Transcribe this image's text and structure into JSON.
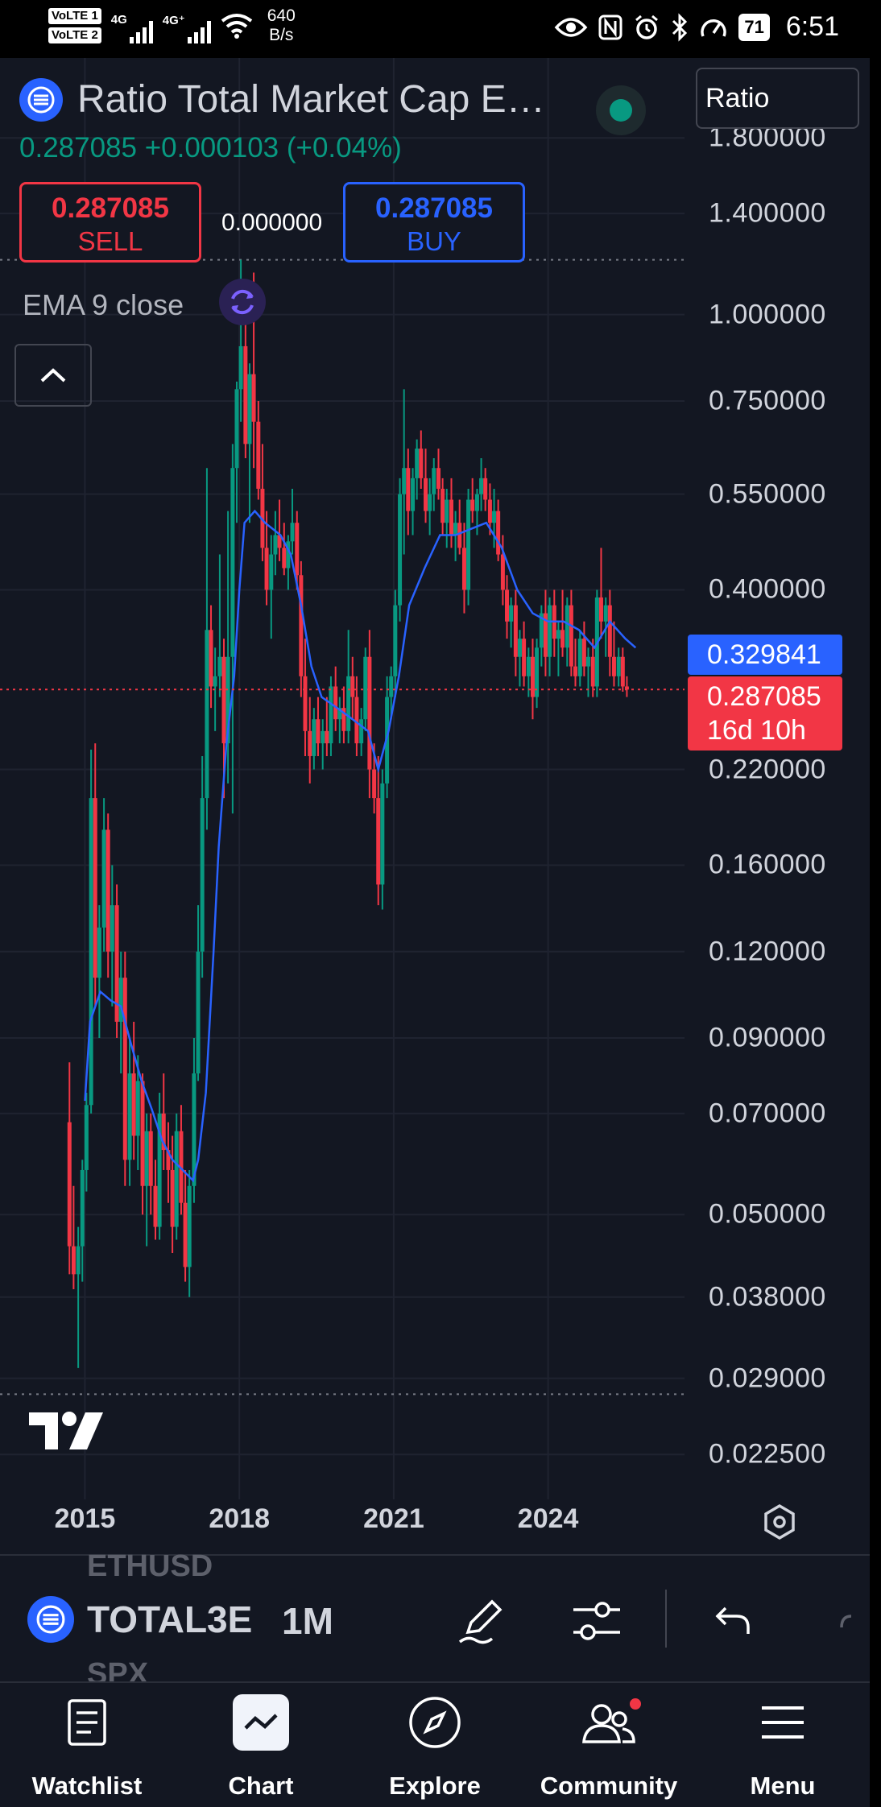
{
  "status": {
    "volte1": "VoLTE 1",
    "volte2": "VoLTE 2",
    "net1": "4G",
    "net2": "4G⁺",
    "speed_value": "640",
    "speed_unit": "B/s",
    "battery": "71",
    "time": "6:51"
  },
  "header": {
    "title": "Ratio Total Market Cap E…",
    "scale_mode": "Ratio",
    "price_change": "0.287085  +0.000103 (+0.04%)",
    "sell_price": "0.287085",
    "sell_label": "SELL",
    "spread": "0.000000",
    "buy_price": "0.287085",
    "buy_label": "BUY",
    "indicator": "EMA 9 close"
  },
  "colors": {
    "background": "#131722",
    "up": "#089981",
    "down": "#f23645",
    "ema": "#2962ff",
    "text": "#d1d4dc"
  },
  "price_axis": {
    "ticks": [
      "1.800000",
      "1.400000",
      "1.000000",
      "0.750000",
      "0.550000",
      "0.400000",
      "0.220000",
      "0.160000",
      "0.120000",
      "0.090000",
      "0.070000",
      "0.050000",
      "0.038000",
      "0.029000",
      "0.022500"
    ],
    "ema_tag": "0.329841",
    "last_price_tag": "0.287085",
    "countdown": "16d 10h"
  },
  "chart_data": {
    "type": "candlestick",
    "scale": "log",
    "interval": "1M",
    "ylim": [
      0.021,
      2.0
    ],
    "x_ticks": [
      "2015",
      "2018",
      "2021",
      "2024"
    ],
    "x_tick_years": [
      2015,
      2018,
      2021,
      2024
    ],
    "x_range": [
      2013.35,
      2026.65
    ],
    "series": [
      {
        "name": "EMA 9 close",
        "points": [
          [
            2015.0,
            0.073
          ],
          [
            2015.1,
            0.095
          ],
          [
            2015.3,
            0.105
          ],
          [
            2015.5,
            0.102
          ],
          [
            2015.7,
            0.1
          ],
          [
            2015.9,
            0.088
          ],
          [
            2016.1,
            0.078
          ],
          [
            2016.3,
            0.071
          ],
          [
            2016.5,
            0.064
          ],
          [
            2016.7,
            0.06
          ],
          [
            2016.9,
            0.058
          ],
          [
            2017.1,
            0.056
          ],
          [
            2017.2,
            0.06
          ],
          [
            2017.35,
            0.075
          ],
          [
            2017.5,
            0.12
          ],
          [
            2017.6,
            0.17
          ],
          [
            2017.75,
            0.24
          ],
          [
            2017.9,
            0.3
          ],
          [
            2018.0,
            0.4
          ],
          [
            2018.1,
            0.5
          ],
          [
            2018.3,
            0.52
          ],
          [
            2018.5,
            0.5
          ],
          [
            2018.8,
            0.48
          ],
          [
            2019.0,
            0.45
          ],
          [
            2019.2,
            0.38
          ],
          [
            2019.4,
            0.31
          ],
          [
            2019.6,
            0.28
          ],
          [
            2019.9,
            0.27
          ],
          [
            2020.2,
            0.26
          ],
          [
            2020.5,
            0.25
          ],
          [
            2020.7,
            0.22
          ],
          [
            2020.9,
            0.25
          ],
          [
            2021.1,
            0.3
          ],
          [
            2021.3,
            0.38
          ],
          [
            2021.6,
            0.43
          ],
          [
            2021.9,
            0.48
          ],
          [
            2022.2,
            0.48
          ],
          [
            2022.5,
            0.49
          ],
          [
            2022.8,
            0.5
          ],
          [
            2023.1,
            0.46
          ],
          [
            2023.4,
            0.4
          ],
          [
            2023.7,
            0.37
          ],
          [
            2024.0,
            0.36
          ],
          [
            2024.3,
            0.36
          ],
          [
            2024.6,
            0.35
          ],
          [
            2024.9,
            0.33
          ],
          [
            2025.2,
            0.36
          ],
          [
            2025.5,
            0.34
          ],
          [
            2025.7,
            0.33
          ]
        ]
      }
    ],
    "candles": [
      [
        2014.7,
        0.068,
        0.083,
        0.041,
        0.045
      ],
      [
        2014.78,
        0.045,
        0.055,
        0.039,
        0.041
      ],
      [
        2014.87,
        0.041,
        0.048,
        0.03,
        0.045
      ],
      [
        2014.95,
        0.045,
        0.06,
        0.04,
        0.058
      ],
      [
        2015.03,
        0.058,
        0.075,
        0.054,
        0.072
      ],
      [
        2015.12,
        0.072,
        0.235,
        0.07,
        0.2
      ],
      [
        2015.2,
        0.2,
        0.24,
        0.1,
        0.11
      ],
      [
        2015.28,
        0.11,
        0.14,
        0.09,
        0.13
      ],
      [
        2015.37,
        0.13,
        0.2,
        0.12,
        0.18
      ],
      [
        2015.45,
        0.18,
        0.19,
        0.11,
        0.12
      ],
      [
        2015.53,
        0.12,
        0.16,
        0.1,
        0.14
      ],
      [
        2015.62,
        0.14,
        0.15,
        0.09,
        0.095
      ],
      [
        2015.7,
        0.095,
        0.12,
        0.08,
        0.11
      ],
      [
        2015.78,
        0.11,
        0.12,
        0.055,
        0.06
      ],
      [
        2015.87,
        0.06,
        0.09,
        0.055,
        0.08
      ],
      [
        2015.95,
        0.08,
        0.095,
        0.06,
        0.065
      ],
      [
        2016.03,
        0.065,
        0.085,
        0.058,
        0.078
      ],
      [
        2016.12,
        0.078,
        0.08,
        0.05,
        0.055
      ],
      [
        2016.2,
        0.055,
        0.07,
        0.045,
        0.066
      ],
      [
        2016.28,
        0.066,
        0.07,
        0.05,
        0.055
      ],
      [
        2016.37,
        0.055,
        0.06,
        0.046,
        0.048
      ],
      [
        2016.45,
        0.048,
        0.075,
        0.046,
        0.07
      ],
      [
        2016.53,
        0.07,
        0.08,
        0.058,
        0.062
      ],
      [
        2016.62,
        0.062,
        0.068,
        0.052,
        0.058
      ],
      [
        2016.7,
        0.058,
        0.065,
        0.044,
        0.048
      ],
      [
        2016.78,
        0.048,
        0.07,
        0.046,
        0.066
      ],
      [
        2016.87,
        0.066,
        0.072,
        0.05,
        0.052
      ],
      [
        2016.95,
        0.052,
        0.058,
        0.04,
        0.042
      ],
      [
        2017.03,
        0.042,
        0.058,
        0.038,
        0.055
      ],
      [
        2017.12,
        0.055,
        0.09,
        0.052,
        0.08
      ],
      [
        2017.2,
        0.08,
        0.14,
        0.078,
        0.12
      ],
      [
        2017.28,
        0.12,
        0.23,
        0.11,
        0.2
      ],
      [
        2017.37,
        0.2,
        0.6,
        0.18,
        0.35
      ],
      [
        2017.45,
        0.35,
        0.38,
        0.27,
        0.29
      ],
      [
        2017.53,
        0.29,
        0.33,
        0.25,
        0.3
      ],
      [
        2017.62,
        0.3,
        0.45,
        0.28,
        0.32
      ],
      [
        2017.7,
        0.32,
        0.34,
        0.2,
        0.24
      ],
      [
        2017.78,
        0.24,
        0.52,
        0.21,
        0.32
      ],
      [
        2017.87,
        0.32,
        0.65,
        0.19,
        0.6
      ],
      [
        2017.95,
        0.6,
        0.8,
        0.5,
        0.78
      ],
      [
        2018.03,
        0.78,
        1.2,
        0.7,
        0.9
      ],
      [
        2018.12,
        0.9,
        1.0,
        0.62,
        0.65
      ],
      [
        2018.2,
        0.65,
        0.85,
        0.5,
        0.82
      ],
      [
        2018.28,
        0.82,
        1.15,
        0.6,
        0.7
      ],
      [
        2018.37,
        0.7,
        0.75,
        0.54,
        0.56
      ],
      [
        2018.45,
        0.56,
        0.65,
        0.44,
        0.46
      ],
      [
        2018.53,
        0.46,
        0.52,
        0.38,
        0.4
      ],
      [
        2018.62,
        0.4,
        0.48,
        0.34,
        0.45
      ],
      [
        2018.7,
        0.45,
        0.52,
        0.42,
        0.48
      ],
      [
        2018.78,
        0.48,
        0.54,
        0.44,
        0.46
      ],
      [
        2018.87,
        0.46,
        0.5,
        0.42,
        0.43
      ],
      [
        2018.95,
        0.43,
        0.48,
        0.4,
        0.47
      ],
      [
        2019.03,
        0.47,
        0.56,
        0.45,
        0.5
      ],
      [
        2019.12,
        0.5,
        0.52,
        0.4,
        0.42
      ],
      [
        2019.2,
        0.42,
        0.44,
        0.28,
        0.3
      ],
      [
        2019.28,
        0.3,
        0.34,
        0.23,
        0.25
      ],
      [
        2019.37,
        0.25,
        0.28,
        0.21,
        0.23
      ],
      [
        2019.45,
        0.23,
        0.27,
        0.22,
        0.26
      ],
      [
        2019.53,
        0.26,
        0.28,
        0.23,
        0.24
      ],
      [
        2019.62,
        0.24,
        0.26,
        0.22,
        0.25
      ],
      [
        2019.7,
        0.25,
        0.28,
        0.23,
        0.24
      ],
      [
        2019.78,
        0.24,
        0.3,
        0.23,
        0.29
      ],
      [
        2019.87,
        0.29,
        0.31,
        0.25,
        0.26
      ],
      [
        2019.95,
        0.26,
        0.28,
        0.24,
        0.27
      ],
      [
        2020.03,
        0.27,
        0.29,
        0.24,
        0.25
      ],
      [
        2020.12,
        0.25,
        0.35,
        0.24,
        0.3
      ],
      [
        2020.2,
        0.3,
        0.32,
        0.26,
        0.28
      ],
      [
        2020.28,
        0.28,
        0.3,
        0.23,
        0.24
      ],
      [
        2020.37,
        0.24,
        0.27,
        0.23,
        0.26
      ],
      [
        2020.45,
        0.26,
        0.33,
        0.25,
        0.32
      ],
      [
        2020.53,
        0.32,
        0.35,
        0.2,
        0.22
      ],
      [
        2020.62,
        0.22,
        0.24,
        0.19,
        0.2
      ],
      [
        2020.7,
        0.2,
        0.23,
        0.14,
        0.15
      ],
      [
        2020.78,
        0.15,
        0.22,
        0.138,
        0.21
      ],
      [
        2020.87,
        0.21,
        0.3,
        0.2,
        0.28
      ],
      [
        2020.95,
        0.28,
        0.31,
        0.26,
        0.3
      ],
      [
        2021.03,
        0.3,
        0.4,
        0.28,
        0.38
      ],
      [
        2021.12,
        0.38,
        0.58,
        0.36,
        0.55
      ],
      [
        2021.2,
        0.55,
        0.78,
        0.45,
        0.6
      ],
      [
        2021.28,
        0.6,
        0.64,
        0.48,
        0.52
      ],
      [
        2021.37,
        0.52,
        0.6,
        0.48,
        0.58
      ],
      [
        2021.45,
        0.58,
        0.66,
        0.54,
        0.64
      ],
      [
        2021.53,
        0.64,
        0.68,
        0.56,
        0.58
      ],
      [
        2021.62,
        0.58,
        0.64,
        0.5,
        0.52
      ],
      [
        2021.7,
        0.52,
        0.58,
        0.48,
        0.55
      ],
      [
        2021.78,
        0.55,
        0.62,
        0.52,
        0.6
      ],
      [
        2021.87,
        0.6,
        0.64,
        0.54,
        0.56
      ],
      [
        2021.95,
        0.56,
        0.58,
        0.48,
        0.5
      ],
      [
        2022.03,
        0.5,
        0.56,
        0.46,
        0.54
      ],
      [
        2022.12,
        0.54,
        0.58,
        0.46,
        0.48
      ],
      [
        2022.2,
        0.48,
        0.52,
        0.44,
        0.5
      ],
      [
        2022.28,
        0.5,
        0.54,
        0.45,
        0.46
      ],
      [
        2022.37,
        0.46,
        0.5,
        0.37,
        0.4
      ],
      [
        2022.45,
        0.4,
        0.56,
        0.38,
        0.54
      ],
      [
        2022.53,
        0.54,
        0.58,
        0.5,
        0.52
      ],
      [
        2022.62,
        0.52,
        0.56,
        0.48,
        0.55
      ],
      [
        2022.7,
        0.55,
        0.62,
        0.52,
        0.58
      ],
      [
        2022.78,
        0.58,
        0.6,
        0.52,
        0.54
      ],
      [
        2022.87,
        0.54,
        0.57,
        0.48,
        0.5
      ],
      [
        2022.95,
        0.5,
        0.56,
        0.46,
        0.52
      ],
      [
        2023.03,
        0.52,
        0.54,
        0.44,
        0.45
      ],
      [
        2023.12,
        0.45,
        0.48,
        0.38,
        0.4
      ],
      [
        2023.2,
        0.4,
        0.42,
        0.34,
        0.36
      ],
      [
        2023.28,
        0.36,
        0.39,
        0.33,
        0.38
      ],
      [
        2023.37,
        0.38,
        0.4,
        0.3,
        0.32
      ],
      [
        2023.45,
        0.32,
        0.35,
        0.29,
        0.34
      ],
      [
        2023.53,
        0.34,
        0.36,
        0.29,
        0.3
      ],
      [
        2023.62,
        0.3,
        0.33,
        0.28,
        0.32
      ],
      [
        2023.7,
        0.32,
        0.34,
        0.26,
        0.28
      ],
      [
        2023.78,
        0.28,
        0.34,
        0.27,
        0.33
      ],
      [
        2023.87,
        0.33,
        0.38,
        0.31,
        0.37
      ],
      [
        2023.95,
        0.37,
        0.4,
        0.3,
        0.32
      ],
      [
        2024.03,
        0.32,
        0.39,
        0.3,
        0.38
      ],
      [
        2024.12,
        0.38,
        0.4,
        0.32,
        0.34
      ],
      [
        2024.2,
        0.34,
        0.36,
        0.3,
        0.35
      ],
      [
        2024.28,
        0.35,
        0.4,
        0.32,
        0.33
      ],
      [
        2024.37,
        0.33,
        0.39,
        0.31,
        0.38
      ],
      [
        2024.45,
        0.38,
        0.4,
        0.3,
        0.31
      ],
      [
        2024.53,
        0.31,
        0.34,
        0.29,
        0.3
      ],
      [
        2024.62,
        0.3,
        0.35,
        0.29,
        0.34
      ],
      [
        2024.7,
        0.34,
        0.36,
        0.3,
        0.31
      ],
      [
        2024.78,
        0.31,
        0.33,
        0.28,
        0.32
      ],
      [
        2024.87,
        0.32,
        0.34,
        0.28,
        0.29
      ],
      [
        2024.95,
        0.29,
        0.4,
        0.28,
        0.39
      ],
      [
        2025.03,
        0.39,
        0.46,
        0.34,
        0.36
      ],
      [
        2025.12,
        0.36,
        0.39,
        0.32,
        0.38
      ],
      [
        2025.2,
        0.38,
        0.4,
        0.3,
        0.32
      ],
      [
        2025.28,
        0.32,
        0.36,
        0.29,
        0.3
      ],
      [
        2025.37,
        0.3,
        0.33,
        0.29,
        0.32
      ],
      [
        2025.45,
        0.32,
        0.33,
        0.285,
        0.29
      ],
      [
        2025.53,
        0.29,
        0.3,
        0.28,
        0.287
      ]
    ]
  },
  "toolbar": {
    "ghost_above": "ETHUSD",
    "ticker": "TOTAL3E",
    "ghost_below": "SPX",
    "interval": "1M"
  },
  "nav": {
    "watchlist": "Watchlist",
    "chart": "Chart",
    "explore": "Explore",
    "community": "Community",
    "menu": "Menu"
  }
}
